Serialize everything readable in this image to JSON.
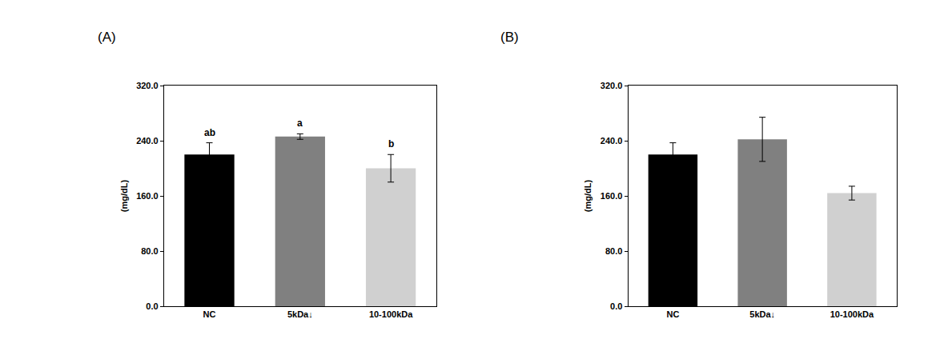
{
  "chart_data": [
    {
      "type": "bar",
      "title": "(A)",
      "categories": [
        "NC",
        "5kDa↓",
        "10-100kDa"
      ],
      "values": [
        220,
        246,
        200
      ],
      "error": [
        17,
        4,
        20
      ],
      "colors": [
        "#000000",
        "#808080",
        "#d0d0d0"
      ],
      "y_label": "(mg/dL)",
      "ylim": [
        0,
        320
      ],
      "yticks": [
        {
          "value": 0,
          "label": "0.0"
        },
        {
          "value": 80,
          "label": "80.0"
        },
        {
          "value": 160,
          "label": "160.0"
        },
        {
          "value": 240,
          "label": "240.0"
        },
        {
          "value": 320,
          "label": "320.0"
        }
      ],
      "grid": false,
      "annotations": [
        {
          "category": "NC",
          "text": "ab"
        },
        {
          "category": "5kDa↓",
          "text": "a"
        },
        {
          "category": "10-100kDa",
          "text": "b"
        }
      ]
    },
    {
      "type": "bar",
      "title": "(B)",
      "categories": [
        "NC",
        "5kDa↓",
        "10-100kDa"
      ],
      "values": [
        220,
        242,
        164
      ],
      "error": [
        17,
        32,
        10
      ],
      "colors": [
        "#000000",
        "#808080",
        "#d0d0d0"
      ],
      "y_label": "(mg/dL)",
      "ylim": [
        0,
        320
      ],
      "yticks": [
        {
          "value": 0,
          "label": "0.0"
        },
        {
          "value": 80,
          "label": "80.0"
        },
        {
          "value": 160,
          "label": "160.0"
        },
        {
          "value": 240,
          "label": "240.0"
        },
        {
          "value": 320,
          "label": "320.0"
        }
      ],
      "grid": false
    }
  ]
}
